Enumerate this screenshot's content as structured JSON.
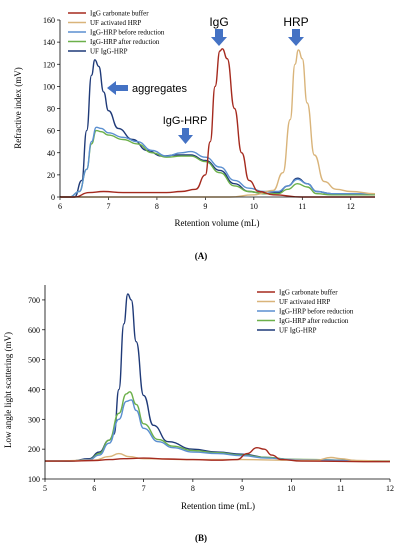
{
  "colors": {
    "IgG carbonate buffer": "#a52a1e",
    "UF activated HRP": "#d9b47a",
    "IgG-HRP before reduction": "#5b8fd0",
    "IgG-HRP after reduction": "#6cb04a",
    "UF IgG-HRP": "#1f3a78",
    "arrow": "#4472c4"
  },
  "chart_data": [
    {
      "type": "line",
      "panel_label": "(A)",
      "xlabel": "Retention volume (mL)",
      "ylabel": "Refractive index (mV)",
      "xlim": [
        6,
        12.5
      ],
      "ylim": [
        0,
        160
      ],
      "xticks": [
        6,
        7,
        8,
        9,
        10,
        11,
        12
      ],
      "yticks": [
        0,
        20,
        40,
        60,
        80,
        100,
        120,
        140,
        160
      ],
      "grid": false,
      "legend_position": "top-left",
      "annotations": [
        {
          "text": "IgG",
          "x": 9.3,
          "y": 135
        },
        {
          "text": "HRP",
          "x": 10.9,
          "y": 132
        },
        {
          "text": "aggregates",
          "x": 6.8,
          "y": 110
        },
        {
          "text": "IgG-HRP",
          "x": 8.6,
          "y": 42
        }
      ],
      "series": [
        {
          "name": "IgG carbonate buffer",
          "points": [
            [
              6,
              0
            ],
            [
              6.3,
              0
            ],
            [
              6.6,
              4
            ],
            [
              6.9,
              5
            ],
            [
              7.3,
              4
            ],
            [
              7.8,
              4
            ],
            [
              8.2,
              4
            ],
            [
              8.5,
              5
            ],
            [
              8.8,
              7
            ],
            [
              9.0,
              20
            ],
            [
              9.1,
              50
            ],
            [
              9.2,
              100
            ],
            [
              9.3,
              132
            ],
            [
              9.35,
              134
            ],
            [
              9.45,
              125
            ],
            [
              9.6,
              80
            ],
            [
              9.75,
              40
            ],
            [
              9.9,
              15
            ],
            [
              10.1,
              5
            ],
            [
              10.4,
              2
            ],
            [
              11,
              0
            ],
            [
              12.5,
              0
            ]
          ]
        },
        {
          "name": "UF activated HRP",
          "points": [
            [
              6,
              0
            ],
            [
              9.5,
              0
            ],
            [
              10.0,
              2
            ],
            [
              10.4,
              6
            ],
            [
              10.6,
              22
            ],
            [
              10.75,
              70
            ],
            [
              10.85,
              120
            ],
            [
              10.92,
              133
            ],
            [
              11.0,
              125
            ],
            [
              11.1,
              85
            ],
            [
              11.25,
              38
            ],
            [
              11.45,
              14
            ],
            [
              11.7,
              7
            ],
            [
              12.0,
              5
            ],
            [
              12.5,
              3
            ]
          ]
        },
        {
          "name": "IgG-HRP before reduction",
          "points": [
            [
              6,
              0
            ],
            [
              6.2,
              0
            ],
            [
              6.4,
              5
            ],
            [
              6.55,
              25
            ],
            [
              6.65,
              50
            ],
            [
              6.75,
              63
            ],
            [
              6.85,
              62
            ],
            [
              7.0,
              58
            ],
            [
              7.3,
              54
            ],
            [
              7.6,
              50
            ],
            [
              7.9,
              42
            ],
            [
              8.2,
              37
            ],
            [
              8.5,
              40
            ],
            [
              8.7,
              41
            ],
            [
              9.0,
              36
            ],
            [
              9.3,
              27
            ],
            [
              9.6,
              15
            ],
            [
              9.9,
              8
            ],
            [
              10.2,
              5
            ],
            [
              10.5,
              5
            ],
            [
              10.7,
              10
            ],
            [
              10.9,
              16
            ],
            [
              11.1,
              12
            ],
            [
              11.3,
              5
            ],
            [
              11.6,
              3
            ],
            [
              12.0,
              3
            ],
            [
              12.5,
              3
            ]
          ]
        },
        {
          "name": "IgG-HRP after reduction",
          "points": [
            [
              6,
              0
            ],
            [
              6.2,
              0
            ],
            [
              6.4,
              5
            ],
            [
              6.55,
              25
            ],
            [
              6.65,
              48
            ],
            [
              6.75,
              60
            ],
            [
              6.85,
              59
            ],
            [
              7.0,
              56
            ],
            [
              7.3,
              52
            ],
            [
              7.6,
              48
            ],
            [
              7.9,
              40
            ],
            [
              8.2,
              36
            ],
            [
              8.5,
              37
            ],
            [
              8.7,
              37
            ],
            [
              9.0,
              32
            ],
            [
              9.3,
              22
            ],
            [
              9.6,
              10
            ],
            [
              9.9,
              5
            ],
            [
              10.2,
              3
            ],
            [
              10.5,
              3
            ],
            [
              10.7,
              7
            ],
            [
              10.9,
              12
            ],
            [
              11.1,
              9
            ],
            [
              11.3,
              3
            ],
            [
              11.6,
              2
            ],
            [
              12.0,
              2
            ],
            [
              12.5,
              2
            ]
          ]
        },
        {
          "name": "UF IgG-HRP",
          "points": [
            [
              6,
              0
            ],
            [
              6.3,
              0
            ],
            [
              6.45,
              15
            ],
            [
              6.55,
              60
            ],
            [
              6.65,
              110
            ],
            [
              6.72,
              124
            ],
            [
              6.8,
              118
            ],
            [
              6.9,
              95
            ],
            [
              7.0,
              78
            ],
            [
              7.2,
              62
            ],
            [
              7.5,
              52
            ],
            [
              7.8,
              42
            ],
            [
              8.1,
              37
            ],
            [
              8.4,
              38
            ],
            [
              8.7,
              38
            ],
            [
              9.0,
              33
            ],
            [
              9.3,
              24
            ],
            [
              9.6,
              12
            ],
            [
              9.9,
              5
            ],
            [
              10.2,
              3
            ],
            [
              10.5,
              4
            ],
            [
              10.7,
              10
            ],
            [
              10.9,
              17
            ],
            [
              11.1,
              12
            ],
            [
              11.3,
              5
            ],
            [
              11.6,
              3
            ],
            [
              12.0,
              3
            ],
            [
              12.5,
              3
            ]
          ]
        }
      ]
    },
    {
      "type": "line",
      "panel_label": "(B)",
      "xlabel": "Retention time (mL)",
      "ylabel": "Low angle light scattering (mV)",
      "xlim": [
        5,
        12
      ],
      "ylim": [
        100,
        750
      ],
      "xticks": [
        5,
        6,
        7,
        8,
        9,
        10,
        11,
        12
      ],
      "yticks": [
        100,
        200,
        300,
        400,
        500,
        600,
        700
      ],
      "grid": false,
      "legend_position": "top-right",
      "series": [
        {
          "name": "IgG carbonate buffer",
          "points": [
            [
              5,
              160
            ],
            [
              5.5,
              160
            ],
            [
              6.0,
              162
            ],
            [
              6.3,
              165
            ],
            [
              6.6,
              168
            ],
            [
              7.0,
              170
            ],
            [
              7.5,
              167
            ],
            [
              8.0,
              165
            ],
            [
              8.5,
              163
            ],
            [
              8.9,
              165
            ],
            [
              9.1,
              185
            ],
            [
              9.3,
              205
            ],
            [
              9.45,
              200
            ],
            [
              9.6,
              180
            ],
            [
              9.8,
              165
            ],
            [
              10.2,
              160
            ],
            [
              12,
              158
            ]
          ]
        },
        {
          "name": "UF activated HRP",
          "points": [
            [
              5,
              160
            ],
            [
              6.0,
              163
            ],
            [
              6.3,
              175
            ],
            [
              6.5,
              185
            ],
            [
              6.7,
              175
            ],
            [
              7.0,
              168
            ],
            [
              8.0,
              165
            ],
            [
              9.0,
              165
            ],
            [
              10.0,
              163
            ],
            [
              10.5,
              163
            ],
            [
              10.8,
              172
            ],
            [
              11.0,
              168
            ],
            [
              11.3,
              162
            ],
            [
              12,
              160
            ]
          ]
        },
        {
          "name": "IgG-HRP before reduction",
          "points": [
            [
              5,
              160
            ],
            [
              5.5,
              160
            ],
            [
              5.9,
              165
            ],
            [
              6.1,
              180
            ],
            [
              6.3,
              220
            ],
            [
              6.5,
              300
            ],
            [
              6.65,
              360
            ],
            [
              6.75,
              365
            ],
            [
              6.85,
              330
            ],
            [
              7.0,
              270
            ],
            [
              7.3,
              225
            ],
            [
              7.6,
              205
            ],
            [
              8.0,
              190
            ],
            [
              8.5,
              185
            ],
            [
              9.0,
              178
            ],
            [
              9.5,
              170
            ],
            [
              10.0,
              165
            ],
            [
              12,
              160
            ]
          ]
        },
        {
          "name": "IgG-HRP after reduction",
          "points": [
            [
              5,
              160
            ],
            [
              5.5,
              160
            ],
            [
              5.9,
              165
            ],
            [
              6.1,
              185
            ],
            [
              6.3,
              230
            ],
            [
              6.5,
              320
            ],
            [
              6.65,
              385
            ],
            [
              6.72,
              392
            ],
            [
              6.85,
              350
            ],
            [
              7.0,
              285
            ],
            [
              7.3,
              232
            ],
            [
              7.6,
              210
            ],
            [
              8.0,
              195
            ],
            [
              8.5,
              188
            ],
            [
              9.0,
              180
            ],
            [
              9.5,
              172
            ],
            [
              10.0,
              166
            ],
            [
              12,
              160
            ]
          ]
        },
        {
          "name": "UF IgG-HRP",
          "points": [
            [
              5,
              160
            ],
            [
              5.5,
              160
            ],
            [
              5.9,
              168
            ],
            [
              6.1,
              190
            ],
            [
              6.3,
              230
            ],
            [
              6.4,
              250
            ],
            [
              6.5,
              400
            ],
            [
              6.6,
              620
            ],
            [
              6.68,
              720
            ],
            [
              6.75,
              700
            ],
            [
              6.85,
              560
            ],
            [
              7.0,
              380
            ],
            [
              7.2,
              280
            ],
            [
              7.5,
              225
            ],
            [
              8.0,
              200
            ],
            [
              8.5,
              190
            ],
            [
              9.0,
              183
            ],
            [
              9.5,
              172
            ],
            [
              10.0,
              165
            ],
            [
              12,
              160
            ]
          ]
        }
      ]
    }
  ]
}
